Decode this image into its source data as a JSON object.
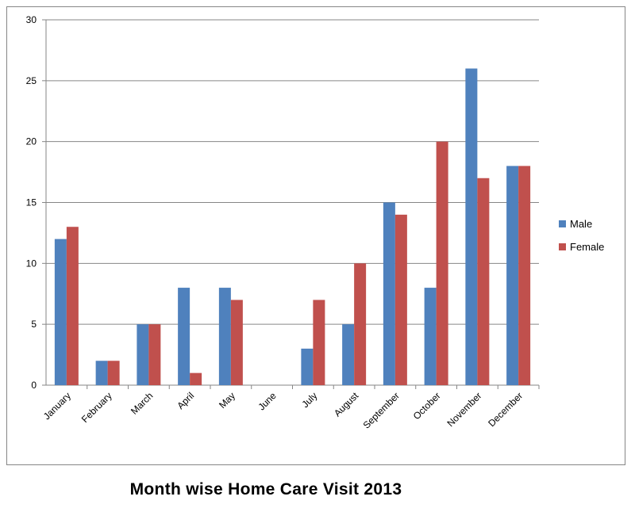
{
  "caption": "Month wise Home Care Visit 2013",
  "chart_data": {
    "type": "bar",
    "title": "",
    "xlabel": "",
    "ylabel": "",
    "categories": [
      "January",
      "February",
      "March",
      "April",
      "May",
      "June",
      "July",
      "August",
      "September",
      "October",
      "November",
      "December"
    ],
    "series": [
      {
        "name": "Male",
        "color": "#4F81BD",
        "values": [
          12,
          2,
          5,
          8,
          8,
          0,
          3,
          5,
          15,
          8,
          26,
          18
        ]
      },
      {
        "name": "Female",
        "color": "#C0504D",
        "values": [
          13,
          2,
          5,
          1,
          7,
          0,
          7,
          10,
          14,
          20,
          17,
          18
        ]
      }
    ],
    "ylim": [
      0,
      30
    ],
    "yticks": [
      "0",
      "5",
      "10",
      "15",
      "20",
      "25",
      "30"
    ],
    "grid": true,
    "legend": "right"
  }
}
